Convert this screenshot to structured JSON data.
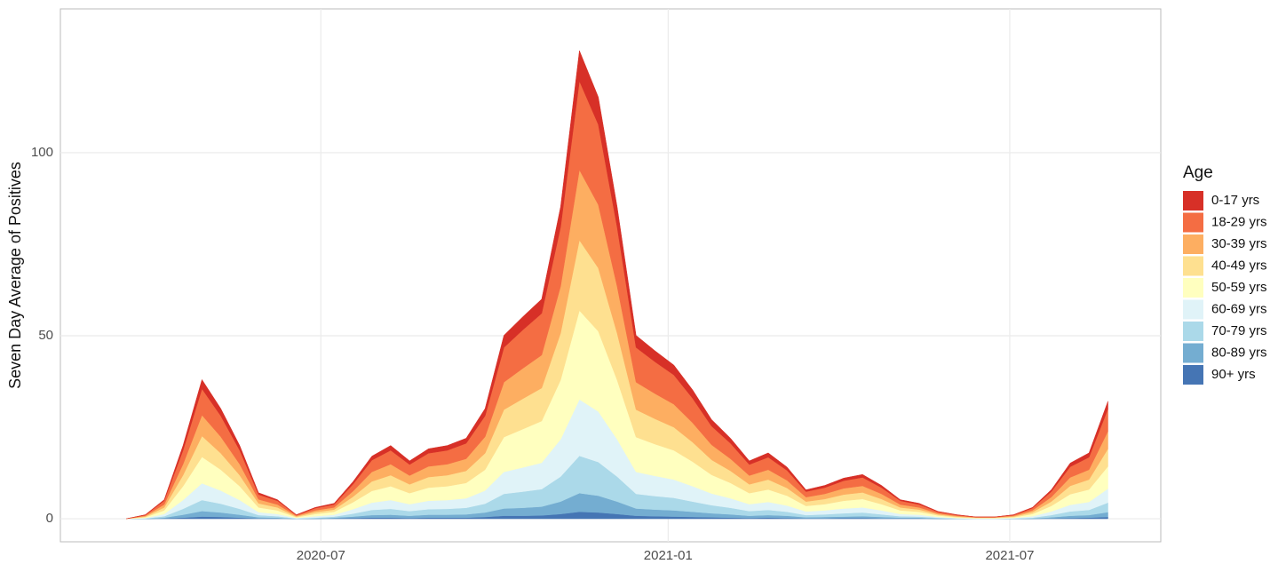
{
  "chart_data": {
    "type": "stacked_area",
    "y_label": "Seven Day Average of Positives",
    "legend_title": "Age",
    "legend_position": "right",
    "grid": true,
    "x": [
      "2020-03-20",
      "2020-03-30",
      "2020-04-09",
      "2020-04-19",
      "2020-04-29",
      "2020-05-09",
      "2020-05-19",
      "2020-05-29",
      "2020-06-08",
      "2020-06-18",
      "2020-06-28",
      "2020-07-08",
      "2020-07-18",
      "2020-07-28",
      "2020-08-07",
      "2020-08-17",
      "2020-08-27",
      "2020-09-06",
      "2020-09-16",
      "2020-09-26",
      "2020-10-06",
      "2020-10-16",
      "2020-10-26",
      "2020-11-05",
      "2020-11-15",
      "2020-11-25",
      "2020-12-05",
      "2020-12-15",
      "2020-12-25",
      "2021-01-04",
      "2021-01-14",
      "2021-01-24",
      "2021-02-03",
      "2021-02-13",
      "2021-02-23",
      "2021-03-05",
      "2021-03-15",
      "2021-03-25",
      "2021-04-04",
      "2021-04-14",
      "2021-04-24",
      "2021-05-04",
      "2021-05-14",
      "2021-05-24",
      "2021-06-03",
      "2021-06-13",
      "2021-06-23",
      "2021-07-03",
      "2021-07-13",
      "2021-07-23",
      "2021-08-02",
      "2021-08-12",
      "2021-08-22"
    ],
    "xlim": [
      "2020-02-14",
      "2021-09-19"
    ],
    "xticks": [
      {
        "value": "2020-07-01",
        "label": "2020-07"
      },
      {
        "value": "2021-01-01",
        "label": "2021-01"
      },
      {
        "value": "2021-07-01",
        "label": "2021-07"
      }
    ],
    "ylim": [
      -6.3,
      139.3
    ],
    "yticks": [
      0,
      50,
      100
    ],
    "series": [
      {
        "name": "0-17 yrs",
        "color": "#d73027",
        "values": [
          0,
          0.1,
          0.3,
          1.3,
          2.5,
          2,
          1.3,
          0.5,
          0.3,
          0.1,
          0.2,
          0.3,
          0.7,
          1.1,
          1.3,
          1,
          1.2,
          1.3,
          1.4,
          2,
          3.3,
          3.6,
          3.9,
          5.5,
          8.3,
          7.5,
          5.5,
          3.3,
          3,
          2.7,
          2.3,
          1.8,
          1.4,
          1,
          1.2,
          0.9,
          0.5,
          0.6,
          0.7,
          0.8,
          0.6,
          0.3,
          0.3,
          0.1,
          0.1,
          0,
          0,
          0.1,
          0.2,
          0.5,
          1,
          1.2,
          2.1
        ]
      },
      {
        "name": "18-29 yrs",
        "color": "#f46d43",
        "values": [
          0,
          0.2,
          1,
          3.8,
          7.2,
          5.7,
          3.8,
          1.3,
          1,
          0.2,
          0.6,
          0.8,
          1.9,
          3.2,
          3.8,
          3,
          3.6,
          3.8,
          4.2,
          5.7,
          9.5,
          10.5,
          11.4,
          16.2,
          24.3,
          21.9,
          16.2,
          9.5,
          8.7,
          8,
          6.7,
          5.1,
          4.2,
          3,
          3.4,
          2.7,
          1.5,
          1.7,
          2.1,
          2.3,
          1.7,
          1,
          0.8,
          0.4,
          0.2,
          0.1,
          0.1,
          0.2,
          0.6,
          1.5,
          2.9,
          3.4,
          6.1
        ]
      },
      {
        "name": "30-39 yrs",
        "color": "#fdae61",
        "values": [
          0,
          0.2,
          0.8,
          3,
          5.7,
          4.5,
          3,
          1.1,
          0.8,
          0.2,
          0.5,
          0.6,
          1.5,
          2.6,
          3,
          2.4,
          2.9,
          3,
          3.3,
          4.5,
          7.5,
          8.3,
          9,
          12.8,
          19.2,
          17.3,
          12.8,
          7.5,
          6.9,
          6.3,
          5.3,
          4.1,
          3.3,
          2.4,
          2.7,
          2.1,
          1.2,
          1.4,
          1.7,
          1.8,
          1.4,
          0.8,
          0.6,
          0.3,
          0.2,
          0.1,
          0.1,
          0.2,
          0.5,
          1.2,
          2.3,
          2.7,
          4.8
        ]
      },
      {
        "name": "40-49 yrs",
        "color": "#fee090",
        "values": [
          0,
          0.2,
          0.8,
          3,
          5.7,
          4.5,
          3,
          1.1,
          0.8,
          0.2,
          0.5,
          0.6,
          1.5,
          2.6,
          3,
          2.4,
          2.9,
          3,
          3.3,
          4.5,
          7.5,
          8.3,
          9,
          12.8,
          19.2,
          17.3,
          12.8,
          7.5,
          6.9,
          6.3,
          5.3,
          4.1,
          3.3,
          2.4,
          2.7,
          2.1,
          1.2,
          1.4,
          1.7,
          1.8,
          1.4,
          0.8,
          0.6,
          0.3,
          0.2,
          0.1,
          0.1,
          0.2,
          0.5,
          1.2,
          2.3,
          2.7,
          4.8
        ]
      },
      {
        "name": "50-59 yrs",
        "color": "#ffffbf",
        "values": [
          0,
          0.2,
          1,
          3.8,
          7.2,
          5.7,
          3.8,
          1.3,
          1,
          0.2,
          0.6,
          0.8,
          1.9,
          3.2,
          3.8,
          3,
          3.6,
          3.8,
          4.2,
          5.7,
          9.5,
          10.5,
          11.4,
          16.2,
          24.3,
          21.9,
          16.2,
          9.5,
          8.7,
          8,
          6.7,
          5.1,
          4.2,
          3,
          3.4,
          2.7,
          1.5,
          1.7,
          2.1,
          2.3,
          1.7,
          1,
          0.8,
          0.4,
          0.2,
          0.1,
          0.1,
          0.2,
          0.6,
          1.5,
          2.9,
          3.4,
          6.1
        ]
      },
      {
        "name": "60-69 yrs",
        "color": "#e0f3f8",
        "values": [
          0,
          0.1,
          0.6,
          2.4,
          4.6,
          3.6,
          2.4,
          0.8,
          0.6,
          0.1,
          0.4,
          0.5,
          1.2,
          2,
          2.4,
          1.9,
          2.3,
          2.4,
          2.6,
          3.6,
          6,
          6.6,
          7.2,
          10.2,
          15.4,
          13.8,
          10.2,
          6,
          5.5,
          5,
          4.2,
          3.2,
          2.6,
          1.9,
          2.2,
          1.7,
          1,
          1.1,
          1.3,
          1.4,
          1.1,
          0.6,
          0.5,
          0.2,
          0.1,
          0.1,
          0.1,
          0.1,
          0.4,
          1,
          1.8,
          2.2,
          3.8
        ]
      },
      {
        "name": "70-79 yrs",
        "color": "#abd9e9",
        "values": [
          0,
          0.1,
          0.4,
          1.6,
          3,
          2.4,
          1.6,
          0.6,
          0.4,
          0.1,
          0.2,
          0.3,
          0.8,
          1.4,
          1.6,
          1.3,
          1.5,
          1.6,
          1.8,
          2.4,
          4,
          4.4,
          4.8,
          6.8,
          10.2,
          9.2,
          6.8,
          4,
          3.7,
          3.4,
          2.8,
          2.2,
          1.8,
          1.3,
          1.4,
          1.1,
          0.6,
          0.7,
          0.9,
          1,
          0.7,
          0.4,
          0.3,
          0.2,
          0.1,
          0,
          0,
          0.1,
          0.2,
          0.6,
          1.2,
          1.4,
          2.6
        ]
      },
      {
        "name": "80-89 yrs",
        "color": "#74add1",
        "values": [
          0,
          0,
          0.2,
          0.8,
          1.5,
          1.2,
          0.8,
          0.3,
          0.2,
          0,
          0.1,
          0.2,
          0.4,
          0.7,
          0.8,
          0.6,
          0.8,
          0.8,
          0.9,
          1.2,
          2,
          2.2,
          2.4,
          3.4,
          5.1,
          4.6,
          3.4,
          2,
          1.8,
          1.7,
          1.4,
          1.1,
          0.9,
          0.6,
          0.7,
          0.6,
          0.3,
          0.4,
          0.4,
          0.5,
          0.4,
          0.2,
          0.2,
          0.1,
          0,
          0,
          0,
          0,
          0.1,
          0.3,
          0.6,
          0.7,
          1.3
        ]
      },
      {
        "name": "90+ yrs",
        "color": "#4575b4",
        "values": [
          0,
          0,
          0.1,
          0.3,
          0.6,
          0.5,
          0.3,
          0.1,
          0.1,
          0,
          0,
          0.1,
          0.2,
          0.3,
          0.3,
          0.2,
          0.3,
          0.3,
          0.3,
          0.5,
          0.8,
          0.8,
          0.9,
          1.3,
          1.9,
          1.7,
          1.3,
          0.8,
          0.7,
          0.6,
          0.5,
          0.4,
          0.3,
          0.2,
          0.3,
          0.2,
          0.1,
          0.1,
          0.2,
          0.2,
          0.1,
          0.1,
          0.1,
          0,
          0,
          0,
          0,
          0,
          0,
          0.1,
          0.2,
          0.3,
          0.5
        ]
      }
    ]
  }
}
